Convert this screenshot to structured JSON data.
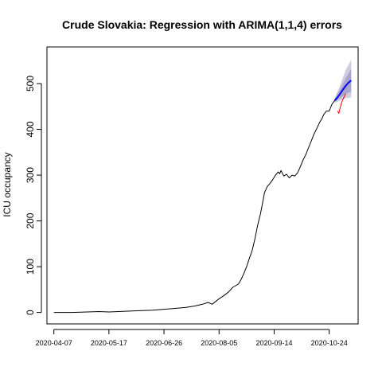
{
  "chart_data": {
    "type": "line",
    "title": "Crude Slovakia: Regression with ARIMA(1,1,4) errors",
    "xlabel": "",
    "ylabel": "ICU occupancy",
    "x_ticks": [
      "2020-04-07",
      "2020-05-17",
      "2020-06-26",
      "2020-08-05",
      "2020-09-14",
      "2020-10-24"
    ],
    "y_ticks": [
      0,
      100,
      200,
      300,
      400,
      500
    ],
    "xlim": [
      "2020-04-02",
      "2020-11-14"
    ],
    "ylim": [
      -25,
      580
    ],
    "grid": false,
    "series": [
      {
        "role": "observed",
        "color": "#000000",
        "points": [
          [
            "2020-04-07",
            0
          ],
          [
            "2020-04-20",
            0
          ],
          [
            "2020-05-01",
            1
          ],
          [
            "2020-05-10",
            2
          ],
          [
            "2020-05-17",
            1
          ],
          [
            "2020-05-24",
            2
          ],
          [
            "2020-06-01",
            3
          ],
          [
            "2020-06-10",
            4
          ],
          [
            "2020-06-18",
            5
          ],
          [
            "2020-06-26",
            7
          ],
          [
            "2020-07-05",
            9
          ],
          [
            "2020-07-12",
            11
          ],
          [
            "2020-07-18",
            14
          ],
          [
            "2020-07-24",
            18
          ],
          [
            "2020-07-28",
            22
          ],
          [
            "2020-07-31",
            18
          ],
          [
            "2020-08-03",
            25
          ],
          [
            "2020-08-05",
            30
          ],
          [
            "2020-08-09",
            38
          ],
          [
            "2020-08-12",
            45
          ],
          [
            "2020-08-15",
            55
          ],
          [
            "2020-08-19",
            62
          ],
          [
            "2020-08-21",
            72
          ],
          [
            "2020-08-23",
            85
          ],
          [
            "2020-08-25",
            100
          ],
          [
            "2020-08-27",
            118
          ],
          [
            "2020-08-29",
            135
          ],
          [
            "2020-08-31",
            160
          ],
          [
            "2020-09-02",
            190
          ],
          [
            "2020-09-04",
            215
          ],
          [
            "2020-09-06",
            245
          ],
          [
            "2020-09-07",
            262
          ],
          [
            "2020-09-09",
            275
          ],
          [
            "2020-09-11",
            282
          ],
          [
            "2020-09-13",
            290
          ],
          [
            "2020-09-15",
            300
          ],
          [
            "2020-09-17",
            307
          ],
          [
            "2020-09-18",
            303
          ],
          [
            "2020-09-19",
            310
          ],
          [
            "2020-09-21",
            298
          ],
          [
            "2020-09-23",
            302
          ],
          [
            "2020-09-25",
            294
          ],
          [
            "2020-09-27",
            300
          ],
          [
            "2020-09-29",
            298
          ],
          [
            "2020-10-01",
            305
          ],
          [
            "2020-10-03",
            318
          ],
          [
            "2020-10-05",
            333
          ],
          [
            "2020-10-07",
            345
          ],
          [
            "2020-10-09",
            360
          ],
          [
            "2020-10-11",
            375
          ],
          [
            "2020-10-13",
            390
          ],
          [
            "2020-10-15",
            402
          ],
          [
            "2020-10-17",
            415
          ],
          [
            "2020-10-19",
            425
          ],
          [
            "2020-10-20",
            432
          ],
          [
            "2020-10-22",
            440
          ],
          [
            "2020-10-24",
            440
          ],
          [
            "2020-10-26",
            455
          ],
          [
            "2020-10-28",
            463
          ]
        ]
      },
      {
        "role": "forecast-mean",
        "color": "#0000ff",
        "points": [
          [
            "2020-10-28",
            463
          ],
          [
            "2020-10-30",
            470
          ],
          [
            "2020-11-01",
            478
          ],
          [
            "2020-11-03",
            487
          ],
          [
            "2020-11-05",
            495
          ],
          [
            "2020-11-07",
            502
          ],
          [
            "2020-11-09",
            507
          ]
        ]
      },
      {
        "role": "actual-holdout",
        "color": "#ff0000",
        "points": [
          [
            "2020-10-30",
            440
          ],
          [
            "2020-10-31",
            435
          ],
          [
            "2020-11-01",
            448
          ],
          [
            "2020-11-02",
            458
          ],
          [
            "2020-11-03",
            466
          ],
          [
            "2020-11-04",
            472
          ],
          [
            "2020-11-05",
            478
          ]
        ]
      }
    ],
    "bands": [
      {
        "level": "95",
        "color": "#cfcde2",
        "lower": [
          [
            "2020-10-28",
            458
          ],
          [
            "2020-11-01",
            463
          ],
          [
            "2020-11-05",
            468
          ],
          [
            "2020-11-09",
            470
          ]
        ],
        "upper": [
          [
            "2020-10-28",
            468
          ],
          [
            "2020-11-01",
            497
          ],
          [
            "2020-11-05",
            530
          ],
          [
            "2020-11-09",
            552
          ]
        ]
      },
      {
        "level": "80",
        "color": "#a9a6cd",
        "lower": [
          [
            "2020-10-28",
            460
          ],
          [
            "2020-11-01",
            468
          ],
          [
            "2020-11-05",
            478
          ],
          [
            "2020-11-09",
            482
          ]
        ],
        "upper": [
          [
            "2020-10-28",
            466
          ],
          [
            "2020-11-01",
            488
          ],
          [
            "2020-11-05",
            512
          ],
          [
            "2020-11-09",
            532
          ]
        ]
      }
    ]
  }
}
